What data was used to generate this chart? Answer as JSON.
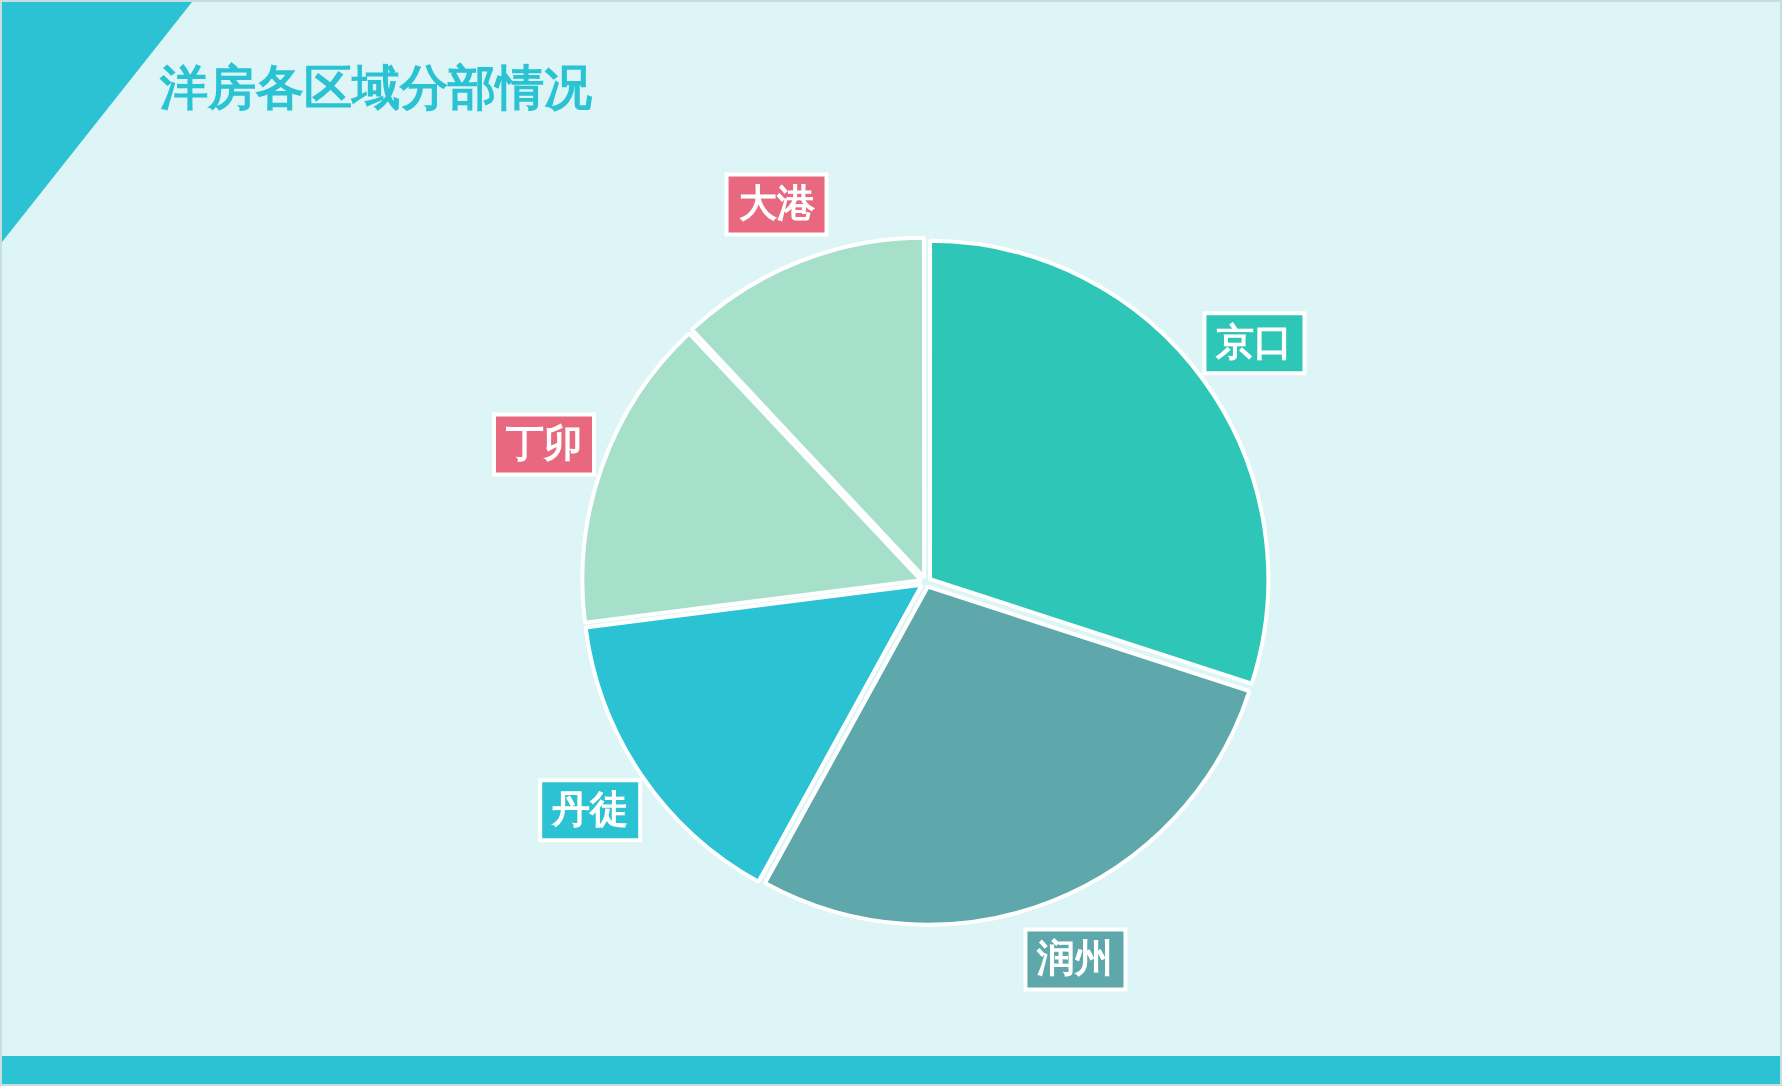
{
  "chart_data": {
    "type": "pie",
    "title": "洋房各区域分部情况",
    "categories": [
      "京口",
      "润州",
      "丹徒",
      "丁卯",
      "大港"
    ],
    "values": [
      30,
      28,
      15,
      15,
      12
    ],
    "colors": [
      "#2ec7b7",
      "#5ea7ab",
      "#2bc3d3",
      "#a6dfca",
      "#a6dfca"
    ],
    "legend": false
  }
}
